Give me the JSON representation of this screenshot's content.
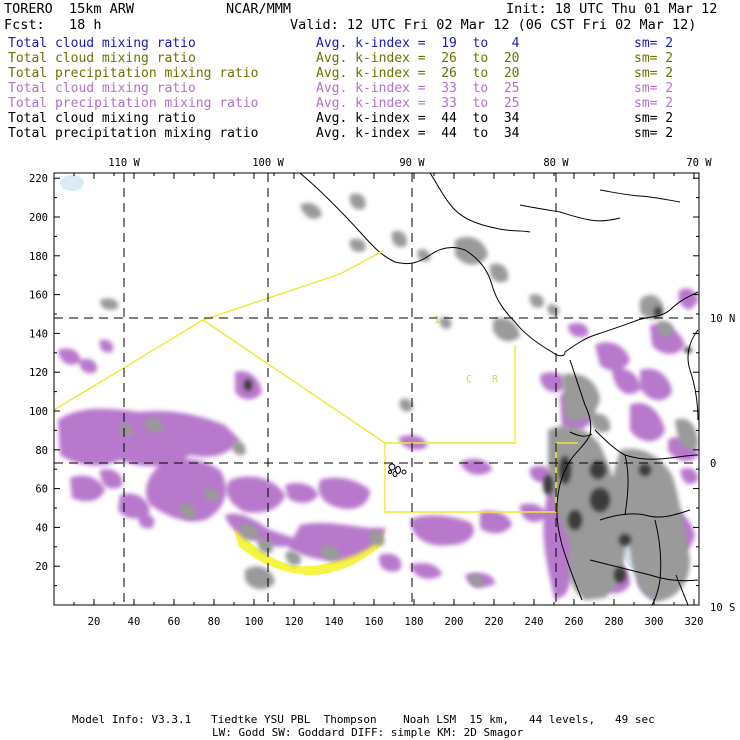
{
  "header": {
    "model": "TORERO  15km ARW",
    "org": "NCAR/MMM",
    "init": "Init: 18 UTC Thu 01 Mar 12",
    "fcst": "Fcst:   18 h",
    "valid": "Valid: 12 UTC Fri 02 Mar 12 (06 CST Fri 02 Mar 12)"
  },
  "legend": [
    {
      "field": "Total cloud mixing ratio",
      "index": "Avg. k-index =  19  to   4",
      "sm": "sm= 2",
      "color": "#1a1ab4"
    },
    {
      "field": "Total cloud mixing ratio",
      "index": "Avg. k-index =  26  to  20",
      "sm": "sm= 2",
      "color": "#6e7000"
    },
    {
      "field": "Total precipitation mixing ratio",
      "index": "Avg. k-index =  26  to  20",
      "sm": "sm= 2",
      "color": "#6e7000"
    },
    {
      "field": "Total cloud mixing ratio",
      "index": "Avg. k-index =  33  to  25",
      "sm": "sm= 2",
      "color": "#b173c8"
    },
    {
      "field": "Total precipitation mixing ratio",
      "index": "Avg. k-index =  33  to  25",
      "sm": "sm= 2",
      "color": "#b173c8"
    },
    {
      "field": "Total cloud mixing ratio",
      "index": "Avg. k-index =  44  to  34",
      "sm": "sm= 2",
      "color": "#000000"
    },
    {
      "field": "Total precipitation mixing ratio",
      "index": "Avg. k-index =  44  to  34",
      "sm": "sm= 2",
      "color": "#000000"
    }
  ],
  "axes": {
    "top_lon_labels": [
      "110 W",
      "100 W",
      "90 W",
      "80 W",
      "70 W"
    ],
    "right_lat_labels": [
      "10 N",
      "0",
      "10 S"
    ],
    "left_ticks": [
      "220",
      "200",
      "180",
      "160",
      "140",
      "120",
      "100",
      "80",
      "60",
      "40",
      "20"
    ],
    "bottom_ticks": [
      "20",
      "40",
      "60",
      "80",
      "100",
      "120",
      "140",
      "160",
      "180",
      "200",
      "220",
      "240",
      "260",
      "280",
      "300",
      "320"
    ]
  },
  "annotations": {
    "region_letters": [
      "C",
      "R"
    ],
    "small_mark": "1"
  },
  "colors": {
    "cloud_gray": "#9a9a9a",
    "cloud_dark": "#3a3a3a",
    "precip_purple": "#b878cc",
    "yellow": "#f5f542",
    "yellow_line": "#f0e830",
    "light_blue": "#d8ecf8"
  },
  "footer": {
    "line1": "Model Info: V3.3.1   Tiedtke YSU PBL  Thompson    Noah LSM  15 km,   44 levels,   49 sec",
    "line2": "LW: Godd SW: Goddard DIFF: simple KM: 2D Smagor"
  }
}
